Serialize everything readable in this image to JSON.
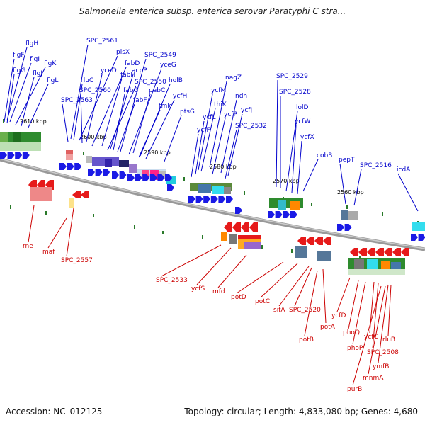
{
  "title": "Salmonella enterica subsp. enterica serovar Paratyphi C stra...",
  "footer": {
    "accession": "Accession: NC_012125",
    "topology": "Topology: circular; Length: 4,833,080 bp; Genes: 4,680"
  },
  "colors": {
    "forward_label": "#0000cc",
    "reverse_label": "#cc0000",
    "backbone": "#888888",
    "tick": "#2a7a2a",
    "forward_arrow": "#1a1ae6",
    "reverse_arrow": "#e61a1a"
  },
  "scale_labels": [
    "2610 kbp",
    "2600 kbp",
    "2590 kbp",
    "2580 kbp",
    "2570 kbp",
    "2560 kbp"
  ],
  "forward_genes": [
    "flgH",
    "flgF",
    "flgI",
    "flgG",
    "flgK",
    "flgJ",
    "flgL",
    "SPC_2561",
    "plsX",
    "rluC",
    "yceD",
    "fabD",
    "SPC_2560",
    "fabH",
    "acpP",
    "SPC_2563",
    "fabG",
    "SPC_2549",
    "yceG",
    "SPC_2550",
    "holB",
    "pabC",
    "fabF",
    "ycfH",
    "tmk",
    "ptsG",
    "nagZ",
    "ycfM",
    "ndh",
    "thiK",
    "ycfL",
    "ycfP",
    "ycfJ",
    "ycfF",
    "SPC_2532",
    "SPC_2529",
    "SPC_2528",
    "lolD",
    "ycfW",
    "ycfX",
    "cobB",
    "pepT",
    "SPC_2516",
    "icdA"
  ],
  "reverse_genes": [
    "rne",
    "maf",
    "SPC_2557",
    "SPC_2533",
    "ycfS",
    "mfd",
    "potD",
    "potC",
    "sifA",
    "SPC_2520",
    "potA",
    "potB",
    "ycfD",
    "phoQ",
    "phoP",
    "ycfC",
    "SPC_2508",
    "rluB",
    "ymfB",
    "mnmA",
    "purB"
  ]
}
